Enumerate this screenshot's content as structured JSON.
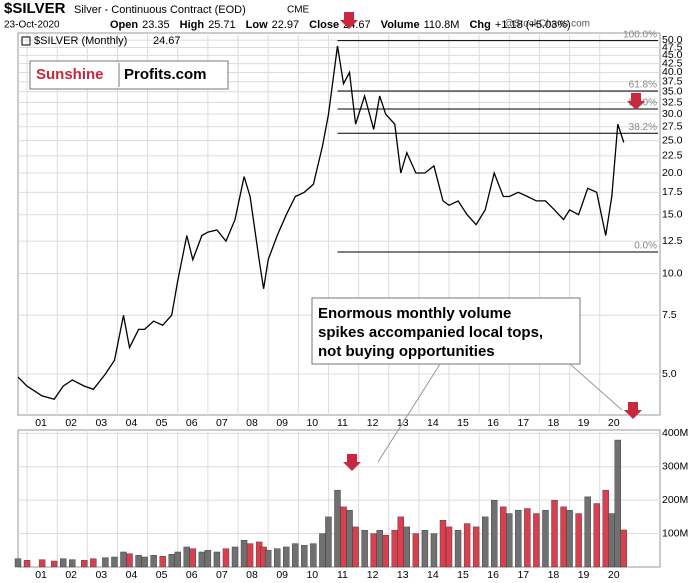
{
  "header": {
    "symbol": "$SILVER",
    "description": "Silver - Continuous Contract (EOD)",
    "exchange": "CME",
    "date": "23-Oct-2020",
    "copyright": "@StockCharts.com",
    "quote": [
      {
        "label": "Open",
        "value": 23.35
      },
      {
        "label": "High",
        "value": 25.71
      },
      {
        "label": "Low",
        "value": 22.97
      },
      {
        "label": "Close",
        "value": 24.67
      },
      {
        "label": "Volume",
        "value": "110.8M"
      },
      {
        "label": "Chg",
        "value": "+1.18 (+5.03%)"
      }
    ]
  },
  "logo": {
    "left": "Sunshine",
    "right": "Profits.com"
  },
  "annotation": [
    "Enormous monthly volume",
    "spikes accompanied local tops,",
    "not buying opportunities"
  ],
  "chart_data": [
    {
      "type": "line",
      "log_scale": true,
      "series": [
        {
          "name": "$SILVER (Monthly)",
          "color": "#000000",
          "values": [
            4.9,
            4.6,
            4.3,
            4.2,
            4.6,
            4.8,
            4.6,
            4.5,
            5.0,
            5.5,
            7.5,
            6.0,
            6.8,
            6.8,
            7.2,
            7.0,
            7.5,
            9.5,
            13.0,
            11.0,
            13.0,
            13.3,
            13.5,
            12.5,
            14.5,
            19.5,
            17.0,
            11.0,
            9.0,
            11.0,
            13.0,
            15.0,
            17.0,
            17.5,
            18.5,
            24,
            30,
            48,
            37,
            40,
            28,
            34,
            27,
            34,
            30,
            28,
            20,
            23,
            20,
            20,
            21,
            16.5,
            16,
            16.5,
            15,
            14,
            15.5,
            20,
            17,
            17,
            17.5,
            17,
            16.5,
            16.5,
            15.5,
            14.5,
            15.5,
            15,
            18,
            17.5,
            13,
            17,
            28,
            24.67
          ]
        }
      ],
      "x": [
        2000.7,
        2001.0,
        2001.5,
        2001.9,
        2002.2,
        2002.5,
        2002.9,
        2003.2,
        2003.6,
        2003.9,
        2004.2,
        2004.4,
        2004.7,
        2004.9,
        2005.2,
        2005.5,
        2005.8,
        2006.0,
        2006.3,
        2006.5,
        2006.8,
        2007.0,
        2007.3,
        2007.6,
        2007.9,
        2008.2,
        2008.4,
        2008.7,
        2008.85,
        2009.0,
        2009.3,
        2009.6,
        2009.9,
        2010.2,
        2010.5,
        2010.8,
        2011.0,
        2011.3,
        2011.5,
        2011.7,
        2011.9,
        2012.2,
        2012.5,
        2012.7,
        2012.9,
        2013.2,
        2013.4,
        2013.6,
        2013.9,
        2014.2,
        2014.5,
        2014.8,
        2015.0,
        2015.3,
        2015.6,
        2015.9,
        2016.2,
        2016.5,
        2016.8,
        2017.0,
        2017.3,
        2017.6,
        2017.9,
        2018.2,
        2018.5,
        2018.8,
        2019.0,
        2019.3,
        2019.6,
        2019.9,
        2020.2,
        2020.4,
        2020.6,
        2020.8
      ],
      "xlim": [
        2000.7,
        2022.0
      ],
      "xticks": [
        {
          "value": 2001,
          "label": "01"
        },
        {
          "value": 2002,
          "label": "02"
        },
        {
          "value": 2003,
          "label": "03"
        },
        {
          "value": 2004,
          "label": "04"
        },
        {
          "value": 2005,
          "label": "05"
        },
        {
          "value": 2006,
          "label": "06"
        },
        {
          "value": 2007,
          "label": "07"
        },
        {
          "value": 2008,
          "label": "08"
        },
        {
          "value": 2009,
          "label": "09"
        },
        {
          "value": 2010,
          "label": "10"
        },
        {
          "value": 2011,
          "label": "11"
        },
        {
          "value": 2012,
          "label": "12"
        },
        {
          "value": 2013,
          "label": "13"
        },
        {
          "value": 2014,
          "label": "14"
        },
        {
          "value": 2015,
          "label": "15"
        },
        {
          "value": 2016,
          "label": "16"
        },
        {
          "value": 2017,
          "label": "17"
        },
        {
          "value": 2018,
          "label": "18"
        },
        {
          "value": 2019,
          "label": "19"
        },
        {
          "value": 2020,
          "label": "20"
        }
      ],
      "ylim": [
        3.77,
        52.5
      ],
      "yticks": [
        {
          "value": 5,
          "label": "5.0"
        },
        {
          "value": 7.5,
          "label": "7.5"
        },
        {
          "value": 10,
          "label": "10.0"
        },
        {
          "value": 12.5,
          "label": "12.5"
        },
        {
          "value": 15,
          "label": "15.0"
        },
        {
          "value": 17.5,
          "label": "17.5"
        },
        {
          "value": 20,
          "label": "20.0"
        },
        {
          "value": 22.5,
          "label": "22.5"
        },
        {
          "value": 25,
          "label": "25.0"
        },
        {
          "value": 27.5,
          "label": "27.5"
        },
        {
          "value": 30,
          "label": "30.0"
        },
        {
          "value": 32.5,
          "label": "32.5"
        },
        {
          "value": 35,
          "label": "35.0"
        },
        {
          "value": 37.5,
          "label": "37.5"
        },
        {
          "value": 40,
          "label": "40.0"
        },
        {
          "value": 42.5,
          "label": "42.5"
        },
        {
          "value": 45,
          "label": "45.0"
        },
        {
          "value": 47.5,
          "label": "47.5"
        },
        {
          "value": 50,
          "label": "50.0"
        }
      ],
      "fib_start": 2011.3,
      "fib_levels": [
        {
          "label": "100.0%",
          "value": 49.8
        },
        {
          "label": "61.8%",
          "value": 35.2
        },
        {
          "label": "50.0%",
          "value": 31.1
        },
        {
          "label": "38.2%",
          "value": 26.3
        },
        {
          "label": "0.0%",
          "value": 11.6
        }
      ],
      "grid": true
    },
    {
      "type": "bar",
      "up_color": "#d9404f",
      "down_color": "#707070",
      "x": [
        2000.7,
        2001.0,
        2001.5,
        2001.9,
        2002.2,
        2002.5,
        2002.9,
        2003.2,
        2003.6,
        2003.9,
        2004.2,
        2004.4,
        2004.7,
        2004.9,
        2005.2,
        2005.5,
        2005.8,
        2006.0,
        2006.3,
        2006.5,
        2006.8,
        2007.0,
        2007.3,
        2007.6,
        2007.9,
        2008.2,
        2008.4,
        2008.7,
        2008.85,
        2009.0,
        2009.3,
        2009.6,
        2009.9,
        2010.2,
        2010.5,
        2010.8,
        2011.0,
        2011.3,
        2011.5,
        2011.7,
        2011.9,
        2012.2,
        2012.5,
        2012.7,
        2012.9,
        2013.2,
        2013.4,
        2013.6,
        2013.9,
        2014.2,
        2014.5,
        2014.8,
        2015.0,
        2015.3,
        2015.6,
        2015.9,
        2016.2,
        2016.5,
        2016.8,
        2017.0,
        2017.3,
        2017.6,
        2017.9,
        2018.2,
        2018.5,
        2018.8,
        2019.0,
        2019.3,
        2019.6,
        2019.9,
        2020.2,
        2020.4,
        2020.6,
        2020.8
      ],
      "values": [
        25,
        20,
        22,
        18,
        25,
        22,
        20,
        25,
        28,
        30,
        45,
        40,
        35,
        30,
        35,
        32,
        38,
        45,
        60,
        55,
        45,
        50,
        45,
        55,
        60,
        80,
        70,
        75,
        60,
        50,
        55,
        60,
        70,
        65,
        70,
        100,
        150,
        230,
        180,
        170,
        120,
        110,
        100,
        110,
        95,
        110,
        150,
        120,
        100,
        110,
        100,
        140,
        120,
        110,
        130,
        120,
        150,
        200,
        180,
        160,
        170,
        175,
        160,
        170,
        200,
        180,
        170,
        160,
        210,
        190,
        230,
        160,
        380,
        110.8
      ],
      "xlim": [
        2000.7,
        2022.0
      ],
      "xticks": [
        {
          "value": 2001,
          "label": "01"
        },
        {
          "value": 2002,
          "label": "02"
        },
        {
          "value": 2003,
          "label": "03"
        },
        {
          "value": 2004,
          "label": "04"
        },
        {
          "value": 2005,
          "label": "05"
        },
        {
          "value": 2006,
          "label": "06"
        },
        {
          "value": 2007,
          "label": "07"
        },
        {
          "value": 2008,
          "label": "08"
        },
        {
          "value": 2009,
          "label": "09"
        },
        {
          "value": 2010,
          "label": "10"
        },
        {
          "value": 2011,
          "label": "11"
        },
        {
          "value": 2012,
          "label": "12"
        },
        {
          "value": 2013,
          "label": "13"
        },
        {
          "value": 2014,
          "label": "14"
        },
        {
          "value": 2015,
          "label": "15"
        },
        {
          "value": 2016,
          "label": "16"
        },
        {
          "value": 2017,
          "label": "17"
        },
        {
          "value": 2018,
          "label": "18"
        },
        {
          "value": 2019,
          "label": "19"
        },
        {
          "value": 2020,
          "label": "20"
        }
      ],
      "ylim": [
        0,
        410
      ],
      "yticks": [
        {
          "value": 100,
          "label": "100M"
        },
        {
          "value": 200,
          "label": "200M"
        },
        {
          "value": 300,
          "label": "300M"
        },
        {
          "value": 400,
          "label": "400M"
        }
      ],
      "grid": true
    }
  ]
}
